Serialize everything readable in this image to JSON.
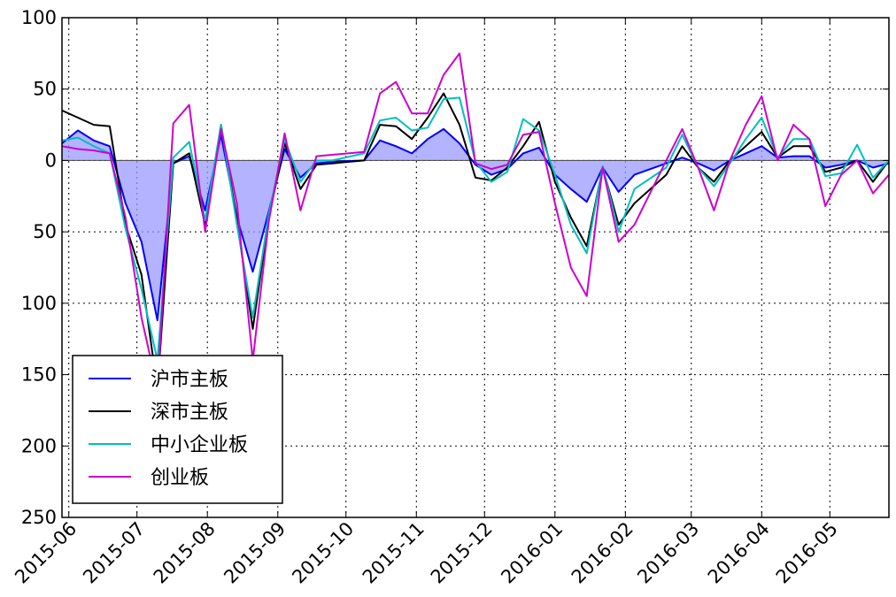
{
  "chart_data": {
    "type": "line",
    "title": "",
    "xlabel": "",
    "ylabel": "",
    "ylim": [
      -250,
      100
    ],
    "yticks": [
      100,
      50,
      0,
      -50,
      -100,
      -150,
      -200,
      -250
    ],
    "ytick_labels": [
      "100",
      "50",
      "0",
      "50",
      "100",
      "150",
      "200",
      "250"
    ],
    "x_ticks": [
      "2015-06",
      "2015-07",
      "2015-08",
      "2015-09",
      "2015-10",
      "2015-11",
      "2015-12",
      "2016-01",
      "2016-02",
      "2016-03",
      "2016-04",
      "2016-05"
    ],
    "grid": true,
    "legend_position": "lower-left",
    "fill_series": "沪市主板",
    "fill_color": "#9999ff",
    "x": [
      "2015-05-29",
      "2015-06-05",
      "2015-06-12",
      "2015-06-19",
      "2015-06-26",
      "2015-07-03",
      "2015-07-10",
      "2015-07-17",
      "2015-07-24",
      "2015-07-31",
      "2015-08-07",
      "2015-08-14",
      "2015-08-21",
      "2015-08-28",
      "2015-09-04",
      "2015-09-11",
      "2015-09-18",
      "2015-09-25",
      "2015-10-09",
      "2015-10-16",
      "2015-10-23",
      "2015-10-30",
      "2015-11-06",
      "2015-11-13",
      "2015-11-20",
      "2015-11-27",
      "2015-12-04",
      "2015-12-11",
      "2015-12-18",
      "2015-12-25",
      "2016-01-01",
      "2016-01-08",
      "2016-01-15",
      "2016-01-22",
      "2016-01-29",
      "2016-02-05",
      "2016-02-19",
      "2016-02-26",
      "2016-03-04",
      "2016-03-11",
      "2016-03-18",
      "2016-03-25",
      "2016-04-01",
      "2016-04-08",
      "2016-04-15",
      "2016-04-22",
      "2016-04-29",
      "2016-05-06",
      "2016-05-13",
      "2016-05-20",
      "2016-05-27"
    ],
    "series": [
      {
        "name": "沪市主板",
        "color": "#0000ff",
        "values": [
          12,
          21,
          14,
          10,
          -30,
          -57,
          -112,
          -2,
          3,
          -35,
          18,
          -40,
          -78,
          -36,
          8,
          -12,
          -2,
          -1,
          0,
          14,
          10,
          5,
          15,
          22,
          12,
          -3,
          -10,
          -6,
          5,
          9,
          -10,
          -20,
          -29,
          -5,
          -22,
          -10,
          -2,
          2,
          -2,
          -7,
          0,
          5,
          10,
          2,
          3,
          3,
          -5,
          -3,
          0,
          -5,
          -2
        ]
      },
      {
        "name": "深市主板",
        "color": "#000000",
        "values": [
          35,
          30,
          25,
          24,
          -45,
          -80,
          -160,
          -2,
          5,
          -45,
          25,
          -42,
          -118,
          -40,
          12,
          -20,
          -3,
          -2,
          0,
          25,
          24,
          15,
          30,
          47,
          25,
          -12,
          -14,
          -5,
          10,
          27,
          -15,
          -40,
          -60,
          -5,
          -45,
          -30,
          -10,
          10,
          -5,
          -15,
          0,
          10,
          20,
          2,
          10,
          10,
          -8,
          -5,
          0,
          -15,
          0
        ]
      },
      {
        "name": "中小企业板",
        "color": "#00bfbf",
        "values": [
          14,
          16,
          10,
          5,
          -48,
          -90,
          -140,
          2,
          13,
          -42,
          25,
          -45,
          -110,
          -38,
          15,
          -15,
          0,
          0,
          5,
          28,
          30,
          21,
          23,
          43,
          44,
          -1,
          -15,
          -8,
          29,
          21,
          -10,
          -45,
          -65,
          -4,
          -50,
          -20,
          -5,
          18,
          -5,
          -18,
          -2,
          15,
          30,
          2,
          15,
          15,
          -11,
          -9,
          11,
          -12,
          0
        ]
      },
      {
        "name": "创业板",
        "color": "#cc00cc",
        "values": [
          10,
          8,
          7,
          5,
          -40,
          -110,
          -160,
          26,
          39,
          -50,
          22,
          -30,
          -140,
          -43,
          19,
          -35,
          3,
          4,
          6,
          47,
          55,
          33,
          33,
          60,
          75,
          -2,
          -6,
          -3,
          18,
          20,
          -30,
          -75,
          -95,
          -5,
          -57,
          -45,
          0,
          22,
          -5,
          -35,
          0,
          25,
          45,
          0,
          25,
          15,
          -32,
          -10,
          0,
          -23,
          -10
        ]
      }
    ]
  }
}
